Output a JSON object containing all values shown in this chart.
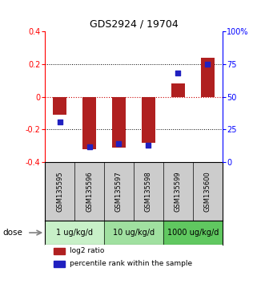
{
  "title": "GDS2924 / 19704",
  "samples": [
    "GSM135595",
    "GSM135596",
    "GSM135597",
    "GSM135598",
    "GSM135599",
    "GSM135600"
  ],
  "log2_ratio": [
    -0.11,
    -0.32,
    -0.31,
    -0.28,
    0.08,
    0.24
  ],
  "percentile_rank": [
    0.31,
    0.12,
    0.14,
    0.13,
    0.68,
    0.75
  ],
  "ylim": [
    -0.4,
    0.4
  ],
  "yticks_left": [
    -0.4,
    -0.2,
    0.0,
    0.2,
    0.4
  ],
  "bar_color": "#b02020",
  "dot_color": "#2020c0",
  "zero_line_color": "#cc0000",
  "bg_plot": "#ffffff",
  "bg_sample": "#cccccc",
  "bg_dose_light": "#c8f0c8",
  "bg_dose_mid": "#a0e0a0",
  "bg_dose_dark": "#60c860",
  "legend_red": "log2 ratio",
  "legend_blue": "percentile rank within the sample",
  "bar_width": 0.45,
  "dot_size": 18
}
